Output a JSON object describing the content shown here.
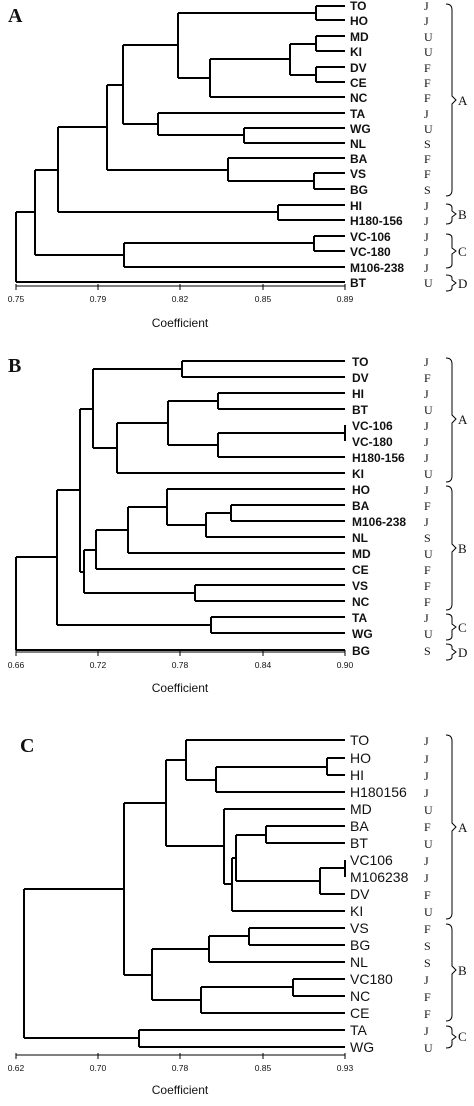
{
  "panels": [
    {
      "letter": "A",
      "axis_ticks": [
        "0.75",
        "0.79",
        "0.82",
        "0.85",
        "0.89"
      ],
      "xlabel": "Coefficient",
      "leaves": [
        {
          "label": "TO",
          "code": "J"
        },
        {
          "label": "HO",
          "code": "J"
        },
        {
          "label": "MD",
          "code": "U"
        },
        {
          "label": "KI",
          "code": "U"
        },
        {
          "label": "DV",
          "code": "F"
        },
        {
          "label": "CE",
          "code": "F"
        },
        {
          "label": "NC",
          "code": "F"
        },
        {
          "label": "TA",
          "code": "J"
        },
        {
          "label": "WG",
          "code": "U"
        },
        {
          "label": "NL",
          "code": "S"
        },
        {
          "label": "BA",
          "code": "F"
        },
        {
          "label": "VS",
          "code": "F"
        },
        {
          "label": "BG",
          "code": "S"
        },
        {
          "label": "HI",
          "code": "J"
        },
        {
          "label": "H180-156",
          "code": "J"
        },
        {
          "label": "VC-106",
          "code": "J"
        },
        {
          "label": "VC-180",
          "code": "J"
        },
        {
          "label": "M106-238",
          "code": "J"
        },
        {
          "label": "BT",
          "code": "U"
        }
      ],
      "groups": [
        "A",
        "B",
        "C",
        "D"
      ]
    },
    {
      "letter": "B",
      "axis_ticks": [
        "0.66",
        "0.72",
        "0.78",
        "0.84",
        "0.90"
      ],
      "xlabel": "Coefficient",
      "leaves": [
        {
          "label": "TO",
          "code": "J"
        },
        {
          "label": "DV",
          "code": "F"
        },
        {
          "label": "HI",
          "code": "J"
        },
        {
          "label": "BT",
          "code": "U"
        },
        {
          "label": "VC-106",
          "code": "J"
        },
        {
          "label": "VC-180",
          "code": "J"
        },
        {
          "label": "H180-156",
          "code": "J"
        },
        {
          "label": "KI",
          "code": "U"
        },
        {
          "label": "HO",
          "code": "J"
        },
        {
          "label": "BA",
          "code": "F"
        },
        {
          "label": "M106-238",
          "code": "J"
        },
        {
          "label": "NL",
          "code": "S"
        },
        {
          "label": "MD",
          "code": "U"
        },
        {
          "label": "CE",
          "code": "F"
        },
        {
          "label": "VS",
          "code": "F"
        },
        {
          "label": "NC",
          "code": "F"
        },
        {
          "label": "TA",
          "code": "J"
        },
        {
          "label": "WG",
          "code": "U"
        },
        {
          "label": "BG",
          "code": "S"
        }
      ],
      "groups": [
        "A",
        "B",
        "C",
        "D"
      ]
    },
    {
      "letter": "C",
      "axis_ticks": [
        "0.62",
        "0.70",
        "0.78",
        "0.85",
        "0.93"
      ],
      "xlabel": "Coefficient",
      "leaves": [
        {
          "label": "TO",
          "code": "J"
        },
        {
          "label": "HO",
          "code": "J"
        },
        {
          "label": "HI",
          "code": "J"
        },
        {
          "label": "H180156",
          "code": "J"
        },
        {
          "label": "MD",
          "code": "U"
        },
        {
          "label": "BA",
          "code": "F"
        },
        {
          "label": "BT",
          "code": "U"
        },
        {
          "label": "VC106",
          "code": "J"
        },
        {
          "label": "M106238",
          "code": "J"
        },
        {
          "label": "DV",
          "code": "F"
        },
        {
          "label": "KI",
          "code": "U"
        },
        {
          "label": "VS",
          "code": "F"
        },
        {
          "label": "BG",
          "code": "S"
        },
        {
          "label": "NL",
          "code": "S"
        },
        {
          "label": "VC180",
          "code": "J"
        },
        {
          "label": "NC",
          "code": "F"
        },
        {
          "label": "CE",
          "code": "F"
        },
        {
          "label": "TA",
          "code": "J"
        },
        {
          "label": "WG",
          "code": "U"
        }
      ],
      "groups": [
        "A",
        "B",
        "C"
      ]
    }
  ]
}
